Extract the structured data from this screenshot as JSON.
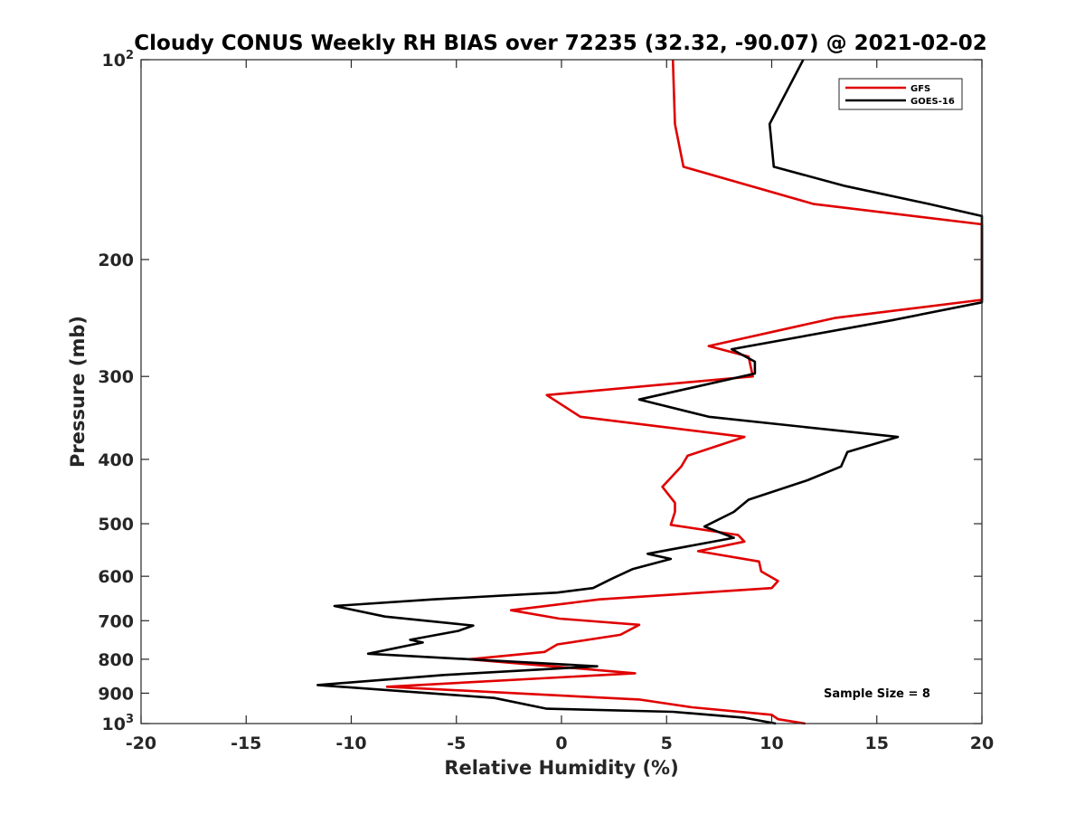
{
  "chart_data": {
    "type": "line",
    "title": "Cloudy CONUS Weekly RH BIAS over 72235 (32.32, -90.07) @ 2021-02-02",
    "xlabel": "Relative Humidity (%)",
    "ylabel": "Pressure (mb)",
    "xlim": [
      -20,
      20
    ],
    "ylim": [
      100,
      1000
    ],
    "yscale": "log",
    "y_reversed": true,
    "grid": false,
    "x_ticks": [
      -20,
      -15,
      -10,
      -5,
      0,
      5,
      10,
      15,
      20
    ],
    "x_tick_labels": [
      "-20",
      "-15",
      "-10",
      "-5",
      "0",
      "5",
      "10",
      "15",
      "20"
    ],
    "y_ticks": [
      100,
      200,
      300,
      400,
      500,
      600,
      700,
      800,
      900,
      1000
    ],
    "y_tick_labels": [
      {
        "value": 100,
        "base": "10",
        "exp": "2"
      },
      {
        "value": 200,
        "text": "200"
      },
      {
        "value": 300,
        "text": "300"
      },
      {
        "value": 400,
        "text": "400"
      },
      {
        "value": 500,
        "text": "500"
      },
      {
        "value": 600,
        "text": "600"
      },
      {
        "value": 700,
        "text": "700"
      },
      {
        "value": 800,
        "text": "800"
      },
      {
        "value": 900,
        "text": "900"
      },
      {
        "value": 1000,
        "base": "10",
        "exp": "3"
      }
    ],
    "legend_position": "top-right",
    "annotation": "Sample Size = 8",
    "series": [
      {
        "name": "GFS",
        "color": "#e00000",
        "points": [
          {
            "p": 100,
            "v": 5.3
          },
          {
            "p": 125,
            "v": 5.4
          },
          {
            "p": 145,
            "v": 5.8
          },
          {
            "p": 165,
            "v": 12.0
          },
          {
            "p": 177,
            "v": 20.0
          },
          {
            "p": 230,
            "v": 20.0
          },
          {
            "p": 245,
            "v": 13.0
          },
          {
            "p": 270,
            "v": 7.0
          },
          {
            "p": 280,
            "v": 8.9
          },
          {
            "p": 300,
            "v": 9.1
          },
          {
            "p": 320,
            "v": -0.7
          },
          {
            "p": 345,
            "v": 0.9
          },
          {
            "p": 370,
            "v": 8.7
          },
          {
            "p": 395,
            "v": 6.0
          },
          {
            "p": 410,
            "v": 5.7
          },
          {
            "p": 440,
            "v": 4.8
          },
          {
            "p": 465,
            "v": 5.4
          },
          {
            "p": 480,
            "v": 5.4
          },
          {
            "p": 502,
            "v": 5.2
          },
          {
            "p": 520,
            "v": 8.4
          },
          {
            "p": 532,
            "v": 8.7
          },
          {
            "p": 550,
            "v": 6.5
          },
          {
            "p": 570,
            "v": 9.4
          },
          {
            "p": 590,
            "v": 9.5
          },
          {
            "p": 610,
            "v": 10.3
          },
          {
            "p": 625,
            "v": 10.0
          },
          {
            "p": 650,
            "v": 1.8
          },
          {
            "p": 675,
            "v": -2.4
          },
          {
            "p": 695,
            "v": -0.1
          },
          {
            "p": 710,
            "v": 3.7
          },
          {
            "p": 735,
            "v": 2.8
          },
          {
            "p": 760,
            "v": -0.2
          },
          {
            "p": 780,
            "v": -0.8
          },
          {
            "p": 800,
            "v": -4.4
          },
          {
            "p": 840,
            "v": 3.5
          },
          {
            "p": 880,
            "v": -8.3
          },
          {
            "p": 920,
            "v": 3.7
          },
          {
            "p": 945,
            "v": 6.2
          },
          {
            "p": 970,
            "v": 10.0
          },
          {
            "p": 985,
            "v": 10.3
          },
          {
            "p": 1000,
            "v": 11.6
          }
        ]
      },
      {
        "name": "GOES-16",
        "color": "#000000",
        "points": [
          {
            "p": 100,
            "v": 11.5
          },
          {
            "p": 125,
            "v": 9.9
          },
          {
            "p": 145,
            "v": 10.1
          },
          {
            "p": 155,
            "v": 13.5
          },
          {
            "p": 165,
            "v": 17.5
          },
          {
            "p": 172,
            "v": 20.0
          },
          {
            "p": 232,
            "v": 20.0
          },
          {
            "p": 247,
            "v": 15.7
          },
          {
            "p": 273,
            "v": 8.1
          },
          {
            "p": 285,
            "v": 9.2
          },
          {
            "p": 297,
            "v": 9.2
          },
          {
            "p": 325,
            "v": 3.7
          },
          {
            "p": 345,
            "v": 7.0
          },
          {
            "p": 370,
            "v": 16.0
          },
          {
            "p": 390,
            "v": 13.6
          },
          {
            "p": 410,
            "v": 13.3
          },
          {
            "p": 430,
            "v": 11.7
          },
          {
            "p": 460,
            "v": 8.9
          },
          {
            "p": 480,
            "v": 8.2
          },
          {
            "p": 505,
            "v": 6.8
          },
          {
            "p": 525,
            "v": 8.2
          },
          {
            "p": 555,
            "v": 4.1
          },
          {
            "p": 565,
            "v": 5.2
          },
          {
            "p": 585,
            "v": 3.4
          },
          {
            "p": 605,
            "v": 2.4
          },
          {
            "p": 625,
            "v": 1.5
          },
          {
            "p": 635,
            "v": -0.2
          },
          {
            "p": 650,
            "v": -6.1
          },
          {
            "p": 665,
            "v": -10.8
          },
          {
            "p": 690,
            "v": -8.4
          },
          {
            "p": 712,
            "v": -4.2
          },
          {
            "p": 725,
            "v": -4.9
          },
          {
            "p": 748,
            "v": -7.2
          },
          {
            "p": 755,
            "v": -6.6
          },
          {
            "p": 785,
            "v": -9.2
          },
          {
            "p": 820,
            "v": 1.7
          },
          {
            "p": 845,
            "v": -5.6
          },
          {
            "p": 875,
            "v": -11.6
          },
          {
            "p": 915,
            "v": -3.2
          },
          {
            "p": 950,
            "v": -0.7
          },
          {
            "p": 960,
            "v": 5.3
          },
          {
            "p": 980,
            "v": 8.7
          },
          {
            "p": 1000,
            "v": 10.2
          }
        ]
      }
    ]
  }
}
